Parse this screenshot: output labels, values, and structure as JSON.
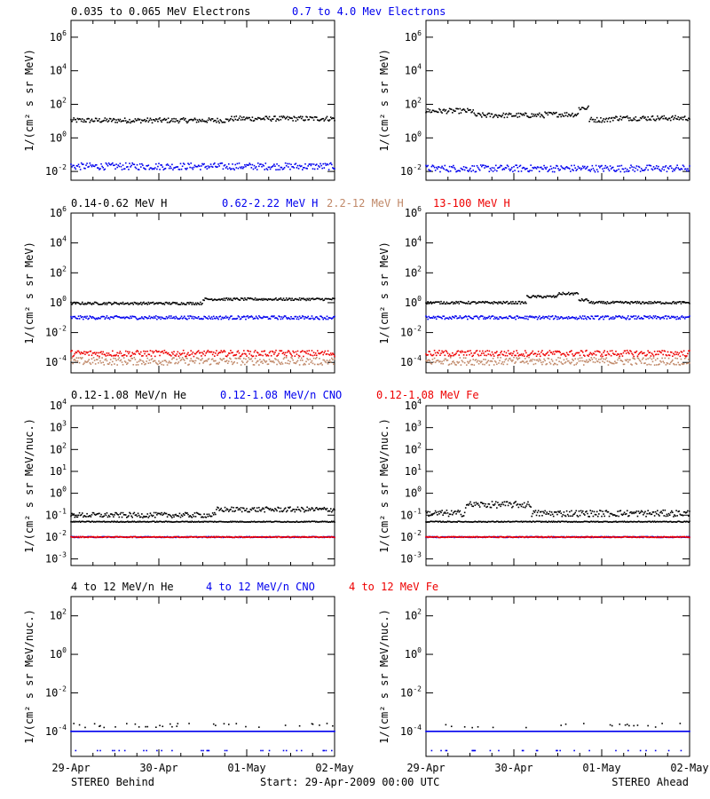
{
  "colors": {
    "black": "#000000",
    "blue": "#0000ee",
    "tan": "#c08868",
    "red": "#ee0000"
  },
  "chart_data": [
    {
      "id": "electrons",
      "type": "scatter",
      "ylabel": "1/(cm² s sr MeV)",
      "scale": "log",
      "ylim": [
        0.003,
        10000000
      ],
      "ticks": [
        "10^6",
        "10^4",
        "10^2",
        "10^0",
        "10^-2"
      ],
      "legend": [
        {
          "text": "0.035 to 0.065 MeV Electrons",
          "color": "black"
        },
        {
          "text": "0.7 to 4.0 Mev Electrons",
          "color": "blue"
        }
      ],
      "behind": {
        "series": [
          {
            "color": "black",
            "level": 11,
            "spread": 1.4,
            "features": [
              {
                "x0": 0.6,
                "x1": 1.0,
                "level": 14
              }
            ]
          },
          {
            "color": "blue",
            "level": 0.02,
            "spread": 1.6
          }
        ]
      },
      "ahead": {
        "series": [
          {
            "color": "black",
            "level": 15,
            "spread": 1.4,
            "features": [
              {
                "x0": 0.0,
                "x1": 0.18,
                "level": 40
              },
              {
                "x0": 0.18,
                "x1": 0.45,
                "level": 22
              },
              {
                "x0": 0.45,
                "x1": 0.58,
                "level": 25
              },
              {
                "x0": 0.58,
                "x1": 0.62,
                "level": 60
              },
              {
                "x0": 0.62,
                "x1": 0.7,
                "level": 12
              }
            ]
          },
          {
            "color": "blue",
            "level": 0.015,
            "spread": 1.6
          }
        ]
      }
    },
    {
      "id": "protons",
      "type": "scatter",
      "ylabel": "1/(cm² s sr MeV)",
      "scale": "log",
      "ylim": [
        2e-05,
        1000000
      ],
      "ticks": [
        "10^6",
        "10^4",
        "10^2",
        "10^0",
        "10^-2",
        "10^-4"
      ],
      "legend": [
        {
          "text": "0.14-0.62 MeV H",
          "color": "black"
        },
        {
          "text": "0.62-2.22 MeV H",
          "color": "blue"
        },
        {
          "text": "2.2-12 MeV H",
          "color": "tan"
        },
        {
          "text": "13-100 MeV H",
          "color": "red"
        }
      ],
      "behind": {
        "series": [
          {
            "color": "black",
            "level": 0.9,
            "spread": 1.2,
            "features": [
              {
                "x0": 0.5,
                "x1": 1.0,
                "level": 1.7
              }
            ]
          },
          {
            "color": "blue",
            "level": 0.1,
            "spread": 1.3
          },
          {
            "color": "tan",
            "level": 0.00012,
            "spread": 1.8
          },
          {
            "color": "red",
            "level": 0.0004,
            "spread": 1.6
          }
        ]
      },
      "ahead": {
        "series": [
          {
            "color": "black",
            "level": 1.0,
            "spread": 1.2,
            "features": [
              {
                "x0": 0.38,
                "x1": 0.5,
                "level": 2.5
              },
              {
                "x0": 0.5,
                "x1": 0.58,
                "level": 4.0
              },
              {
                "x0": 0.58,
                "x1": 0.62,
                "level": 1.5
              }
            ]
          },
          {
            "color": "blue",
            "level": 0.1,
            "spread": 1.3
          },
          {
            "color": "tan",
            "level": 0.00012,
            "spread": 1.8
          },
          {
            "color": "red",
            "level": 0.0004,
            "spread": 1.6
          }
        ]
      }
    },
    {
      "id": "ions-low",
      "type": "scatter",
      "ylabel": "1/(cm² s sr MeV/nuc.)",
      "scale": "log",
      "ylim": [
        0.0005,
        10000
      ],
      "ticks": [
        "10^4",
        "10^3",
        "10^2",
        "10^1",
        "10^0",
        "10^-1",
        "10^-2",
        "10^-3"
      ],
      "legend": [
        {
          "text": "0.12-1.08 MeV/n He",
          "color": "black"
        },
        {
          "text": "0.12-1.08 MeV/n CNO",
          "color": "blue"
        },
        {
          "text": "0.12-1.08 MeV Fe",
          "color": "red"
        }
      ],
      "behind": {
        "series": [
          {
            "color": "black",
            "level": 0.1,
            "spread": 1.3,
            "features": [
              {
                "x0": 0.55,
                "x1": 1.0,
                "level": 0.18
              }
            ]
          },
          {
            "color": "black",
            "level": 0.05,
            "spread": 1.05
          },
          {
            "color": "blue",
            "level": 0.01,
            "spread": 1.05
          },
          {
            "color": "red",
            "level": 0.01,
            "spread": 1.05
          }
        ]
      },
      "ahead": {
        "series": [
          {
            "color": "black",
            "level": 0.12,
            "spread": 1.4,
            "features": [
              {
                "x0": 0.15,
                "x1": 0.4,
                "level": 0.3
              }
            ]
          },
          {
            "color": "black",
            "level": 0.05,
            "spread": 1.05
          },
          {
            "color": "blue",
            "level": 0.01,
            "spread": 1.05
          },
          {
            "color": "red",
            "level": 0.01,
            "spread": 1.05
          }
        ]
      }
    },
    {
      "id": "ions-high",
      "type": "scatter",
      "ylabel": "1/(cm² s sr MeV/nuc.)",
      "scale": "log",
      "ylim": [
        5e-06,
        1000
      ],
      "ticks": [
        "10^2",
        "10^0",
        "10^-2",
        "10^-4"
      ],
      "legend": [
        {
          "text": "4 to 12 MeV/n He",
          "color": "black"
        },
        {
          "text": "4 to 12 MeV/n CNO",
          "color": "blue"
        },
        {
          "text": "4 to 12 MeV Fe",
          "color": "red"
        }
      ],
      "behind": {
        "series": [
          {
            "color": "blue",
            "level": 0.0001,
            "spread": 1.0
          },
          {
            "color": "black",
            "level": 0.0002,
            "spread": 1.3,
            "sparse": 0.08
          },
          {
            "color": "blue",
            "level": 1e-05,
            "spread": 1.0,
            "sparse": 0.12
          }
        ]
      },
      "ahead": {
        "series": [
          {
            "color": "blue",
            "level": 0.0001,
            "spread": 1.0
          },
          {
            "color": "black",
            "level": 0.0002,
            "spread": 1.3,
            "sparse": 0.08
          },
          {
            "color": "blue",
            "level": 1e-05,
            "spread": 1.0,
            "sparse": 0.12
          }
        ]
      }
    }
  ],
  "x_axis": {
    "labels": [
      "29-Apr",
      "30-Apr",
      "01-May",
      "02-May"
    ]
  },
  "footer": {
    "left": "STEREO Behind",
    "center": "Start: 29-Apr-2009 00:00 UTC",
    "right": "STEREO Ahead"
  }
}
